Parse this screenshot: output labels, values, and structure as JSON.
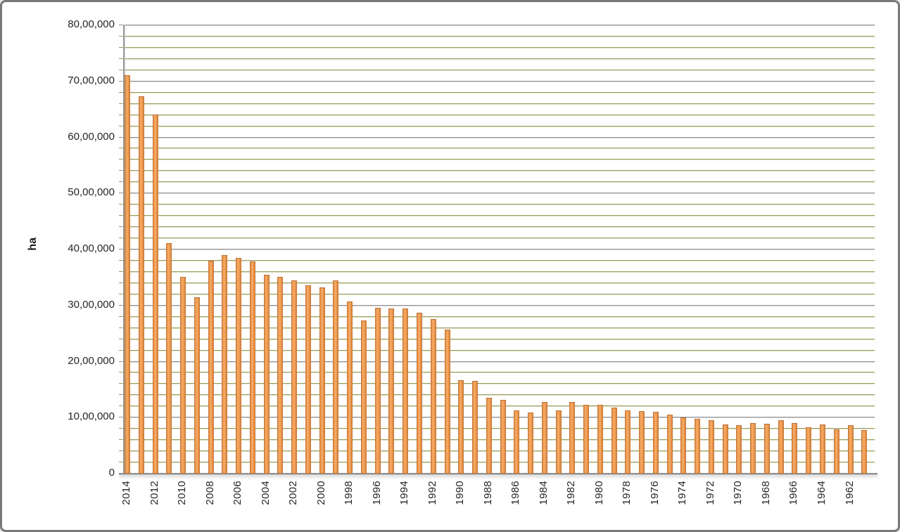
{
  "chart": {
    "title": "",
    "y_axis_title": "ha",
    "y_tick_labels": [
      "80,00,000",
      "70,00,000",
      "60,00,000",
      "50,00,000",
      "40,00,000",
      "30,00,000",
      "20,00,000",
      "10,00,000",
      "0"
    ],
    "x_tick_labels": [
      "2014",
      "2012",
      "2010",
      "2008",
      "2006",
      "2004",
      "2002",
      "2000",
      "1998",
      "1996",
      "1994",
      "1992",
      "1990",
      "1988",
      "1986",
      "1984",
      "1982",
      "1980",
      "1978",
      "1976",
      "1974",
      "1972",
      "1970",
      "1968",
      "1966",
      "1964",
      "1962"
    ],
    "colors": {
      "bar_fill": "#EE9C54",
      "bar_border": "#C6793A",
      "major_gridline": "#949494",
      "minor_gridline": "#9C9C62",
      "axis_line": "#8F8F8F",
      "text": "#262626",
      "frame_border": "#787878",
      "background": "#FFFFFF"
    }
  },
  "chart_data": {
    "type": "bar",
    "title": "",
    "xlabel": "",
    "ylabel": "ha",
    "ylim": [
      0,
      8000000
    ],
    "y_major_unit": 1000000,
    "y_minor_unit": 200000,
    "grid": "major+minor horizontal",
    "legend": "none",
    "x_label_interval": "every 2 years, rotated 90deg",
    "categories": [
      2014,
      2013,
      2012,
      2011,
      2010,
      2009,
      2008,
      2007,
      2006,
      2005,
      2004,
      2003,
      2002,
      2001,
      2000,
      1999,
      1998,
      1997,
      1996,
      1995,
      1994,
      1993,
      1992,
      1991,
      1990,
      1989,
      1988,
      1987,
      1986,
      1985,
      1984,
      1983,
      1982,
      1981,
      1980,
      1979,
      1978,
      1977,
      1976,
      1975,
      1974,
      1973,
      1972,
      1971,
      1970,
      1969,
      1968,
      1967,
      1966,
      1965,
      1964,
      1963,
      1962,
      1961
    ],
    "values": [
      7100000,
      6720000,
      6400000,
      4100000,
      3500000,
      3130000,
      3790000,
      3890000,
      3840000,
      3780000,
      3530000,
      3500000,
      3440000,
      3350000,
      3310000,
      3430000,
      3060000,
      2720000,
      2950000,
      2940000,
      2930000,
      2860000,
      2750000,
      2560000,
      1650000,
      1640000,
      1340000,
      1300000,
      1110000,
      1080000,
      1270000,
      1110000,
      1270000,
      1220000,
      1220000,
      1160000,
      1120000,
      1100000,
      1090000,
      1040000,
      990000,
      960000,
      940000,
      870000,
      850000,
      890000,
      880000,
      940000,
      890000,
      820000,
      860000,
      780000,
      850000,
      760000
    ]
  }
}
